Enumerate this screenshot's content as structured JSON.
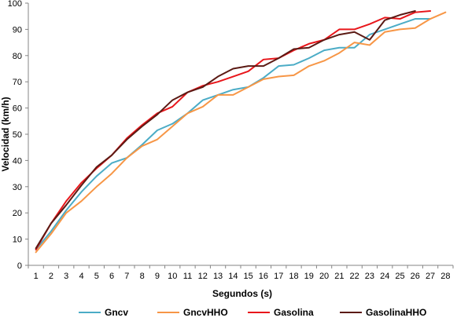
{
  "chart_data": {
    "type": "line",
    "title": "",
    "xlabel": "Segundos (s)",
    "ylabel": "Velocidad (km/h)",
    "ylim": [
      0,
      100
    ],
    "yticks": [
      0,
      10,
      20,
      30,
      40,
      50,
      60,
      70,
      80,
      90,
      100
    ],
    "x": [
      1,
      2,
      3,
      4,
      5,
      6,
      7,
      8,
      9,
      10,
      11,
      12,
      13,
      14,
      15,
      16,
      17,
      18,
      19,
      20,
      21,
      22,
      23,
      24,
      25,
      26,
      27,
      28
    ],
    "grid": "none",
    "legend": "bottom",
    "series": [
      {
        "name": "Gncv",
        "color": "#4bacc6",
        "values": [
          6,
          13,
          21,
          28,
          34,
          39,
          41,
          46,
          51.5,
          54,
          58,
          63,
          65,
          67,
          68,
          71.5,
          76,
          76.5,
          79,
          82,
          83,
          83,
          88,
          90,
          92,
          94,
          94,
          null
        ]
      },
      {
        "name": "GncvHHO",
        "color": "#f79646",
        "values": [
          5,
          12,
          20,
          24.5,
          30,
          35,
          41,
          45.5,
          48,
          53,
          58,
          60.5,
          65,
          65,
          68,
          71,
          72,
          72.5,
          76,
          78,
          81,
          85,
          84,
          89,
          90,
          90.5,
          94,
          96.5
        ]
      },
      {
        "name": "Gasolina",
        "color": "#e8161b",
        "values": [
          6,
          16,
          24.5,
          31.5,
          37,
          42,
          48.5,
          53.5,
          58,
          60.5,
          66,
          68.5,
          70,
          72,
          74,
          78.5,
          79,
          82,
          84.5,
          86,
          90,
          90,
          92,
          94.5,
          94,
          96.5,
          97,
          null
        ]
      },
      {
        "name": "GasolinaHHO",
        "color": "#5b1a14",
        "values": [
          6.5,
          16,
          23,
          30.5,
          37.5,
          42,
          48,
          53,
          57.5,
          63,
          66,
          68,
          72,
          75,
          76,
          76,
          79,
          82.5,
          83,
          86,
          88,
          89,
          86,
          93.5,
          95.5,
          97,
          null,
          null
        ]
      }
    ]
  }
}
